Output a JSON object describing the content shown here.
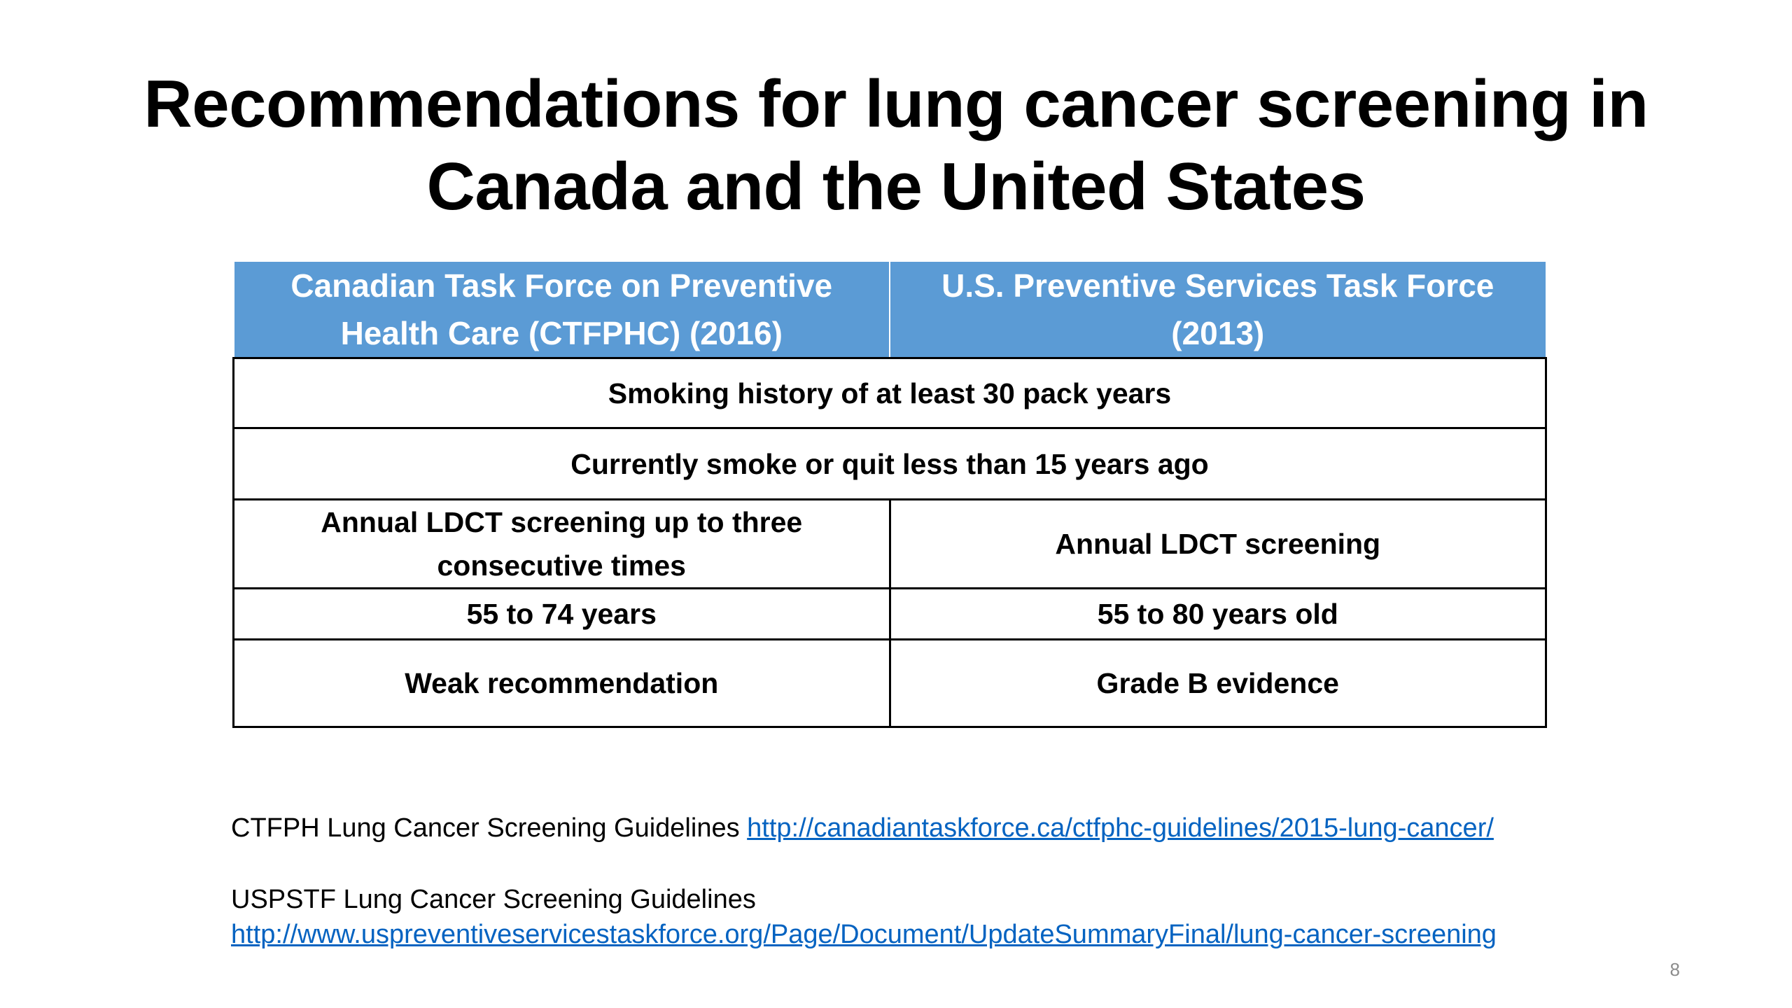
{
  "slide": {
    "title_line1": "Recommendations for lung cancer screening in",
    "title_line2": "Canada and the United States",
    "page_number": "8"
  },
  "table": {
    "headers": [
      "Canadian Task Force on Preventive Health Care (CTFPHC) (2016)",
      "U.S. Preventive Services Task Force (2013)"
    ],
    "shared_rows": [
      "Smoking history of at least 30 pack years",
      "Currently smoke or quit less than 15 years ago"
    ],
    "rows": [
      {
        "ctfphc": "Annual LDCT screening up to three consecutive times",
        "uspstf": "Annual LDCT screening"
      },
      {
        "ctfphc": "55 to 74 years",
        "uspstf": "55 to 80 years old"
      },
      {
        "ctfphc": "Weak recommendation",
        "uspstf": "Grade B evidence"
      }
    ]
  },
  "references": {
    "ctfph_label": "CTFPH Lung Cancer Screening Guidelines",
    "ctfph_url": "http://canadiantaskforce.ca/ctfphc-guidelines/2015-lung-cancer/",
    "uspstf_label": "USPSTF Lung Cancer Screening Guidelines",
    "uspstf_url": "http://www.uspreventiveservicestaskforce.org/Page/Document/UpdateSummaryFinal/lung-cancer-screening"
  },
  "colors": {
    "header_background": "#5b9bd5",
    "link": "#0563c1"
  }
}
